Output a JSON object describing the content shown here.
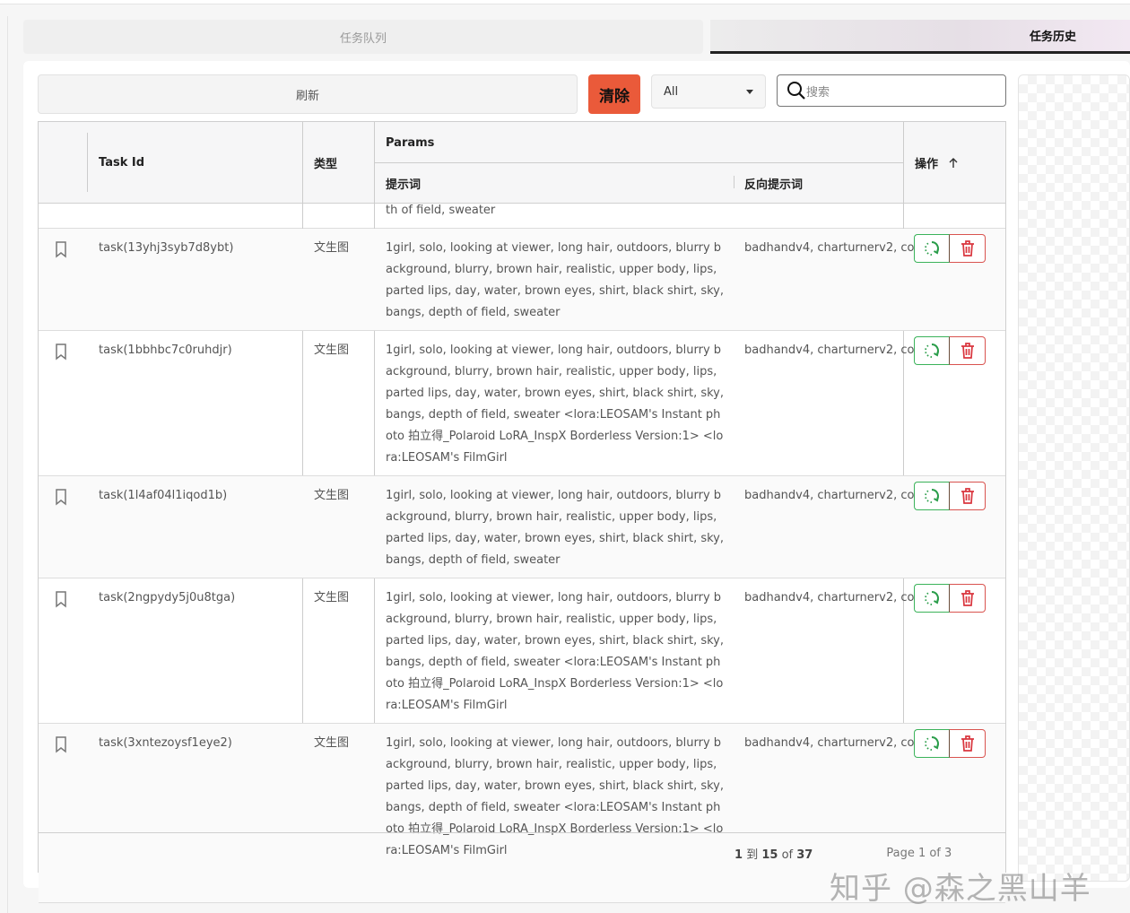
{
  "tabs": [
    {
      "label": "任务队列",
      "active": false
    },
    {
      "label": "任务历史",
      "active": true
    }
  ],
  "toolbar": {
    "refresh_label": "刷新",
    "clear_label": "清除",
    "filter_value": "All",
    "search_placeholder": "搜索",
    "clear_color": "#ea5a3a"
  },
  "table": {
    "headers": {
      "bookmark": "",
      "task_id": "Task Id",
      "type": "类型",
      "params": "Params",
      "prompt": "提示词",
      "negative_prompt": "反向提示词",
      "actions": "操作",
      "sort_icon": "arrow-up-icon"
    },
    "partial_row_text": "th of field, sweater",
    "rows": [
      {
        "task_id": "task(13yhj3syb7d8ybt)",
        "type": "文生图",
        "prompt": "1girl, solo, looking at viewer, long hair, outdoors, blurry background, blurry, brown hair, realistic, upper body, lips, parted lips, day, water, brown eyes, shirt, black shirt, sky, bangs, depth of field, sweater",
        "negative_prompt": "badhandv4, charturnerv2, co"
      },
      {
        "task_id": "task(1bbhbc7c0ruhdjr)",
        "type": "文生图",
        "prompt": "1girl, solo, looking at viewer, long hair, outdoors, blurry background, blurry, brown hair, realistic, upper body, lips, parted lips, day, water, brown eyes, shirt, black shirt, sky, bangs, depth of field, sweater <lora:LEOSAM's Instant photo 拍立得_Polaroid LoRA_InspX Borderless Version:1> <lora:LEOSAM's FilmGirl",
        "negative_prompt": "badhandv4, charturnerv2, co"
      },
      {
        "task_id": "task(1l4af04l1iqod1b)",
        "type": "文生图",
        "prompt": "1girl, solo, looking at viewer, long hair, outdoors, blurry background, blurry, brown hair, realistic, upper body, lips, parted lips, day, water, brown eyes, shirt, black shirt, sky, bangs, depth of field, sweater",
        "negative_prompt": "badhandv4, charturnerv2, co"
      },
      {
        "task_id": "task(2ngpydy5j0u8tga)",
        "type": "文生图",
        "prompt": "1girl, solo, looking at viewer, long hair, outdoors, blurry background, blurry, brown hair, realistic, upper body, lips, parted lips, day, water, brown eyes, shirt, black shirt, sky, bangs, depth of field, sweater <lora:LEOSAM's Instant photo 拍立得_Polaroid LoRA_InspX Borderless Version:1> <lora:LEOSAM's FilmGirl",
        "negative_prompt": "badhandv4, charturnerv2, co"
      },
      {
        "task_id": "task(3xntezoysf1eye2)",
        "type": "文生图",
        "prompt": "1girl, solo, looking at viewer, long hair, outdoors, blurry background, blurry, brown hair, realistic, upper body, lips, parted lips, day, water, brown eyes, shirt, black shirt, sky, bangs, depth of field, sweater <lora:LEOSAM's Instant photo 拍立得_Polaroid LoRA_InspX Borderless Version:1> <lora:LEOSAM's FilmGirl",
        "negative_prompt": "badhandv4, charturnerv2, co"
      }
    ],
    "footer": {
      "from": "1",
      "to_label": "到",
      "to": "15",
      "of_label": "of",
      "total": "37",
      "page_text": "Page 1 of 3"
    }
  },
  "watermark": "知乎 @森之黑山羊"
}
